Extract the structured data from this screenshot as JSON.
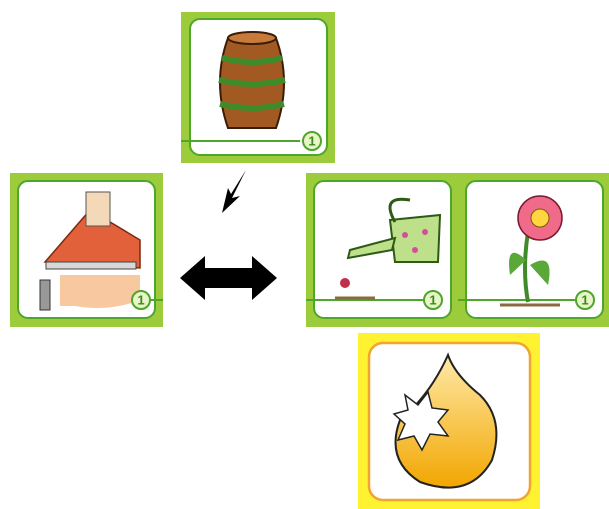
{
  "cards": [
    {
      "number": 1
    },
    {
      "number": 1
    },
    {
      "number": 1
    },
    {
      "number": 1
    }
  ]
}
